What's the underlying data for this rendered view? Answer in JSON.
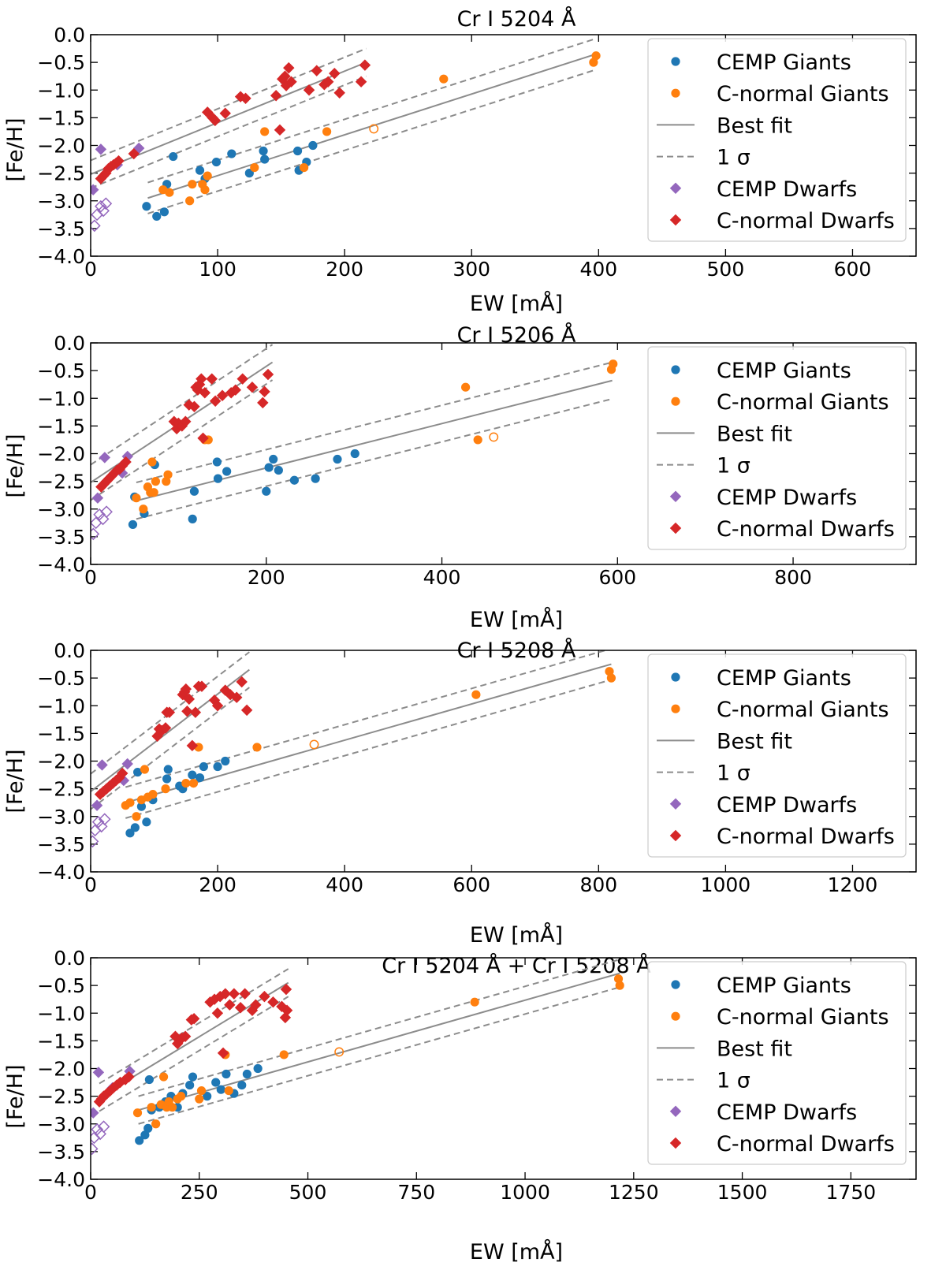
{
  "figure": {
    "ylabel": "[Fe/H]",
    "xlabel": "EW [mÅ]",
    "legend_labels": [
      "CEMP Giants",
      "C-normal Giants",
      "Best fit",
      "1 σ",
      "CEMP Dwarfs",
      "C-normal Dwarfs"
    ],
    "sigma_symbol": "σ"
  },
  "colors": {
    "cemp_giants": "#1f77b4",
    "cnormal_giants": "#ff7f0e",
    "cemp_dwarfs": "#9467bd",
    "cnormal_dwarfs": "#d62728",
    "fit_line": "#8c8c8c",
    "axis": "#000000"
  },
  "chart_data": [
    {
      "type": "scatter",
      "title": "Cr I 5204 Å",
      "xlabel": "EW [mÅ]",
      "ylabel": "[Fe/H]",
      "xlim": [
        0,
        650
      ],
      "ylim": [
        -4.0,
        0.0
      ],
      "xticks": [
        0,
        100,
        200,
        300,
        400,
        500,
        600
      ],
      "yticks": [
        0.0,
        -0.5,
        -1.0,
        -1.5,
        -2.0,
        -2.5,
        -3.0,
        -3.5,
        -4.0
      ],
      "ytick_labels": [
        "0.0",
        "−0.5",
        "−1.0",
        "−1.5",
        "−2.0",
        "−2.5",
        "−3.0",
        "−3.5",
        "−4.0"
      ],
      "legend_position": "top-right",
      "series": [
        {
          "name": "CEMP Giants",
          "marker": "circle",
          "x": [
            44,
            52,
            58,
            60,
            65,
            86,
            90,
            99,
            111,
            125,
            136,
            137,
            163,
            164,
            170,
            175
          ],
          "y": [
            -3.1,
            -3.28,
            -3.2,
            -2.7,
            -2.2,
            -2.45,
            -2.6,
            -2.3,
            -2.15,
            -2.5,
            -2.1,
            -2.25,
            -2.1,
            -2.45,
            -2.3,
            -2.0
          ]
        },
        {
          "name": "C-normal Giants",
          "marker": "circle",
          "x": [
            57,
            62,
            78,
            80,
            88,
            90,
            92,
            129,
            137,
            168,
            186,
            278,
            396,
            398
          ],
          "y": [
            -2.8,
            -2.85,
            -3.0,
            -2.7,
            -2.7,
            -2.8,
            -2.55,
            -2.4,
            -1.75,
            -2.4,
            -1.75,
            -0.8,
            -0.5,
            -0.38
          ],
          "hollow_x": [
            223
          ],
          "hollow_y": [
            -1.7
          ]
        },
        {
          "name": "CEMP Dwarfs",
          "marker": "diamond",
          "x": [
            2,
            8,
            21,
            38
          ],
          "y": [
            -2.8,
            -2.07,
            -2.35,
            -2.05
          ],
          "hollow_x": [
            3,
            5,
            8,
            10,
            12
          ],
          "hollow_y": [
            -3.45,
            -3.25,
            -3.1,
            -3.18,
            -3.05
          ]
        },
        {
          "name": "C-normal Dwarfs",
          "marker": "diamond",
          "x": [
            8,
            10,
            12,
            14,
            16,
            18,
            20,
            22,
            34,
            92,
            96,
            98,
            106,
            118,
            122,
            146,
            149,
            151,
            153,
            154,
            156,
            158,
            172,
            178,
            184,
            187,
            192,
            196,
            213,
            216
          ],
          "y": [
            -2.6,
            -2.55,
            -2.5,
            -2.42,
            -2.38,
            -2.35,
            -2.32,
            -2.28,
            -2.15,
            -1.4,
            -1.5,
            -1.55,
            -1.42,
            -1.12,
            -1.15,
            -1.1,
            -1.72,
            -0.8,
            -0.75,
            -0.92,
            -0.6,
            -0.85,
            -1.0,
            -0.65,
            -0.9,
            -0.85,
            -0.7,
            -1.05,
            -0.85,
            -0.55
          ]
        }
      ],
      "fits": [
        {
          "name": "C-normal Dwarfs fit",
          "x": [
            0,
            217
          ],
          "y": [
            -2.52,
            -0.5
          ],
          "sigma": 0.25
        },
        {
          "name": "Giants fit",
          "x": [
            45,
            398
          ],
          "y": [
            -2.95,
            -0.35
          ],
          "sigma": 0.28
        }
      ]
    },
    {
      "type": "scatter",
      "title": "Cr I 5206 Å",
      "xlabel": "EW [mÅ]",
      "ylabel": "[Fe/H]",
      "xlim": [
        0,
        940
      ],
      "ylim": [
        -4.0,
        0.0
      ],
      "xticks": [
        0,
        200,
        400,
        600,
        800
      ],
      "yticks": [
        0.0,
        -0.5,
        -1.0,
        -1.5,
        -2.0,
        -2.5,
        -3.0,
        -3.5,
        -4.0
      ],
      "ytick_labels": [
        "0.0",
        "−0.5",
        "−1.0",
        "−1.5",
        "−2.0",
        "−2.5",
        "−3.0",
        "−3.5",
        "−4.0"
      ],
      "legend_position": "top-right",
      "series": [
        {
          "name": "CEMP Giants",
          "marker": "circle",
          "x": [
            48,
            50,
            61,
            73,
            116,
            118,
            144,
            145,
            155,
            200,
            203,
            208,
            214,
            232,
            256,
            281,
            301
          ],
          "y": [
            -3.28,
            -2.78,
            -3.08,
            -2.2,
            -3.18,
            -2.68,
            -2.15,
            -2.45,
            -2.32,
            -2.68,
            -2.25,
            -2.1,
            -2.3,
            -2.48,
            -2.45,
            -2.1,
            -2.0
          ]
        },
        {
          "name": "C-normal Giants",
          "marker": "circle",
          "x": [
            52,
            60,
            65,
            68,
            70,
            72,
            74,
            86,
            88,
            130,
            134,
            427,
            441,
            593,
            595
          ],
          "y": [
            -2.8,
            -3.0,
            -2.6,
            -2.7,
            -2.15,
            -2.7,
            -2.5,
            -2.5,
            -2.38,
            -1.75,
            -1.75,
            -0.8,
            -1.75,
            -0.48,
            -0.38
          ],
          "hollow_x": [
            459
          ],
          "hollow_y": [
            -1.7
          ]
        },
        {
          "name": "CEMP Dwarfs",
          "marker": "diamond",
          "x": [
            8,
            16,
            36,
            42
          ],
          "y": [
            -2.8,
            -2.07,
            -2.35,
            -2.05
          ],
          "hollow_x": [
            3,
            6,
            10,
            14,
            18
          ],
          "hollow_y": [
            -3.45,
            -3.25,
            -3.1,
            -3.18,
            -3.05
          ]
        },
        {
          "name": "C-normal Dwarfs",
          "marker": "diamond",
          "x": [
            12,
            15,
            18,
            21,
            24,
            27,
            30,
            33,
            36,
            40,
            95,
            98,
            100,
            104,
            108,
            112,
            118,
            120,
            122,
            124,
            126,
            128,
            130,
            138,
            142,
            150,
            160,
            165,
            173,
            184,
            196,
            198,
            202
          ],
          "y": [
            -2.6,
            -2.55,
            -2.5,
            -2.45,
            -2.4,
            -2.35,
            -2.3,
            -2.28,
            -2.22,
            -2.15,
            -1.42,
            -1.55,
            -1.45,
            -1.5,
            -1.42,
            -1.12,
            -1.15,
            -0.8,
            -0.85,
            -0.75,
            -0.65,
            -1.72,
            -0.9,
            -0.65,
            -1.05,
            -0.95,
            -0.9,
            -0.85,
            -0.65,
            -0.8,
            -1.08,
            -0.88,
            -0.57
          ]
        },
        {
          "name": "_",
          "marker": "none",
          "x": [],
          "y": []
        }
      ],
      "fits": [
        {
          "name": "C-normal Dwarfs fit",
          "x": [
            0,
            207
          ],
          "y": [
            -2.52,
            -0.35
          ],
          "sigma": 0.32
        },
        {
          "name": "Giants fit",
          "x": [
            52,
            594
          ],
          "y": [
            -2.85,
            -0.68
          ],
          "sigma": 0.33
        }
      ]
    },
    {
      "type": "scatter",
      "title": "Cr I 5208 Å",
      "xlabel": "EW [mÅ]",
      "ylabel": "[Fe/H]",
      "xlim": [
        0,
        1300
      ],
      "ylim": [
        -4.0,
        0.0
      ],
      "xticks": [
        0,
        200,
        400,
        600,
        800,
        1000,
        1200
      ],
      "yticks": [
        0.0,
        -0.5,
        -1.0,
        -1.5,
        -2.0,
        -2.5,
        -3.0,
        -3.5,
        -4.0
      ],
      "ytick_labels": [
        "0.0",
        "−0.5",
        "−1.0",
        "−1.5",
        "−2.0",
        "−2.5",
        "−3.0",
        "−3.5",
        "−4.0"
      ],
      "legend_position": "top-right",
      "series": [
        {
          "name": "CEMP Giants",
          "marker": "circle",
          "x": [
            62,
            70,
            74,
            80,
            88,
            98,
            120,
            122,
            140,
            145,
            160,
            172,
            178,
            200,
            212
          ],
          "y": [
            -3.3,
            -3.2,
            -2.2,
            -2.82,
            -3.1,
            -2.7,
            -2.32,
            -2.15,
            -2.45,
            -2.5,
            -2.25,
            -2.3,
            -2.1,
            -2.1,
            -2.0
          ]
        },
        {
          "name": "C-normal Giants",
          "marker": "circle",
          "x": [
            55,
            62,
            72,
            80,
            85,
            90,
            98,
            118,
            150,
            162,
            170,
            262,
            607,
            817,
            820
          ],
          "y": [
            -2.8,
            -2.75,
            -3.0,
            -2.7,
            -2.15,
            -2.65,
            -2.6,
            -2.5,
            -2.4,
            -2.4,
            -1.75,
            -1.75,
            -0.8,
            -0.38,
            -0.5
          ],
          "hollow_x": [
            352
          ],
          "hollow_y": [
            -1.7
          ]
        },
        {
          "name": "CEMP Dwarfs",
          "marker": "diamond",
          "x": [
            10,
            18,
            52,
            58
          ],
          "y": [
            -2.8,
            -2.07,
            -2.35,
            -2.05
          ],
          "hollow_x": [
            3,
            7,
            12,
            17,
            22
          ],
          "hollow_y": [
            -3.45,
            -3.25,
            -3.1,
            -3.18,
            -3.05
          ]
        },
        {
          "name": "C-normal Dwarfs",
          "marker": "diamond",
          "x": [
            15,
            20,
            25,
            30,
            35,
            40,
            45,
            50,
            105,
            108,
            112,
            118,
            120,
            124,
            145,
            148,
            150,
            152,
            155,
            160,
            165,
            170,
            175,
            195,
            200,
            212,
            220,
            230,
            238,
            246
          ],
          "y": [
            -2.6,
            -2.55,
            -2.5,
            -2.45,
            -2.4,
            -2.35,
            -2.3,
            -2.22,
            -1.55,
            -1.42,
            -1.45,
            -1.4,
            -1.12,
            -1.12,
            -0.8,
            -0.75,
            -0.7,
            -1.1,
            -0.88,
            -1.72,
            -1.12,
            -0.65,
            -0.65,
            -0.9,
            -1.0,
            -0.72,
            -0.8,
            -0.85,
            -0.57,
            -1.08
          ]
        }
      ],
      "fits": [
        {
          "name": "C-normal Dwarfs fit",
          "x": [
            0,
            250
          ],
          "y": [
            -2.55,
            -0.35
          ],
          "sigma": 0.32
        },
        {
          "name": "Giants fit",
          "x": [
            55,
            820
          ],
          "y": [
            -2.75,
            -0.25
          ],
          "sigma": 0.28
        }
      ]
    },
    {
      "type": "scatter",
      "title": "Cr I 5204 Å + Cr I 5208 Å",
      "xlabel": "EW [mÅ]",
      "ylabel": "[Fe/H]",
      "xlim": [
        0,
        1900
      ],
      "ylim": [
        -4.0,
        0.0
      ],
      "xticks": [
        0,
        250,
        500,
        750,
        1000,
        1250,
        1500,
        1750
      ],
      "yticks": [
        0.0,
        -0.5,
        -1.0,
        -1.5,
        -2.0,
        -2.5,
        -3.0,
        -3.5,
        -4.0
      ],
      "ytick_labels": [
        "0.0",
        "−0.5",
        "−1.0",
        "−1.5",
        "−2.0",
        "−2.5",
        "−3.0",
        "−3.5",
        "−4.0"
      ],
      "legend_position": "top-right",
      "series": [
        {
          "name": "CEMP Giants",
          "marker": "circle",
          "x": [
            112,
            125,
            132,
            135,
            140,
            158,
            172,
            185,
            200,
            212,
            228,
            235,
            268,
            288,
            300,
            312,
            330,
            348,
            360,
            385
          ],
          "y": [
            -3.3,
            -3.2,
            -3.08,
            -2.2,
            -2.75,
            -2.7,
            -2.6,
            -2.5,
            -2.7,
            -2.45,
            -2.3,
            -2.15,
            -2.5,
            -2.25,
            -2.38,
            -2.1,
            -2.45,
            -2.3,
            -2.1,
            -2.0
          ]
        },
        {
          "name": "C-normal Giants",
          "marker": "circle",
          "x": [
            108,
            140,
            150,
            162,
            168,
            175,
            180,
            188,
            200,
            208,
            250,
            255,
            310,
            318,
            445,
            884,
            1215,
            1218
          ],
          "y": [
            -2.8,
            -2.7,
            -3.0,
            -2.65,
            -2.15,
            -2.7,
            -2.6,
            -2.7,
            -2.55,
            -2.5,
            -2.55,
            -2.4,
            -1.75,
            -2.4,
            -1.75,
            -0.8,
            -0.38,
            -0.5
          ],
          "hollow_x": [
            572
          ],
          "hollow_y": [
            -1.7
          ]
        },
        {
          "name": "CEMP Dwarfs",
          "marker": "diamond",
          "x": [
            6,
            18,
            50,
            90
          ],
          "y": [
            -2.8,
            -2.07,
            -2.35,
            -2.05
          ],
          "hollow_x": [
            3,
            8,
            15,
            22,
            30
          ],
          "hollow_y": [
            -3.45,
            -3.25,
            -3.1,
            -3.18,
            -3.05
          ]
        },
        {
          "name": "C-normal Dwarfs",
          "marker": "diamond",
          "x": [
            20,
            25,
            30,
            38,
            45,
            52,
            60,
            68,
            80,
            88,
            195,
            200,
            210,
            218,
            232,
            238,
            275,
            285,
            292,
            298,
            305,
            310,
            320,
            330,
            345,
            355,
            372,
            380,
            400,
            420,
            440,
            448,
            450,
            452
          ],
          "y": [
            -2.6,
            -2.55,
            -2.5,
            -2.45,
            -2.4,
            -2.35,
            -2.3,
            -2.25,
            -2.2,
            -2.15,
            -1.42,
            -1.55,
            -1.45,
            -1.42,
            -1.12,
            -1.1,
            -0.8,
            -0.75,
            -1.0,
            -0.7,
            -1.72,
            -0.65,
            -0.85,
            -0.65,
            -0.9,
            -0.65,
            -0.95,
            -0.85,
            -0.7,
            -0.8,
            -0.88,
            -1.08,
            -0.57,
            -0.95
          ]
        }
      ],
      "fits": [
        {
          "name": "C-normal Dwarfs fit",
          "x": [
            20,
            455
          ],
          "y": [
            -2.52,
            -0.45
          ],
          "sigma": 0.25
        },
        {
          "name": "Giants fit",
          "x": [
            110,
            1218
          ],
          "y": [
            -2.75,
            -0.28
          ],
          "sigma": 0.25
        }
      ]
    }
  ]
}
